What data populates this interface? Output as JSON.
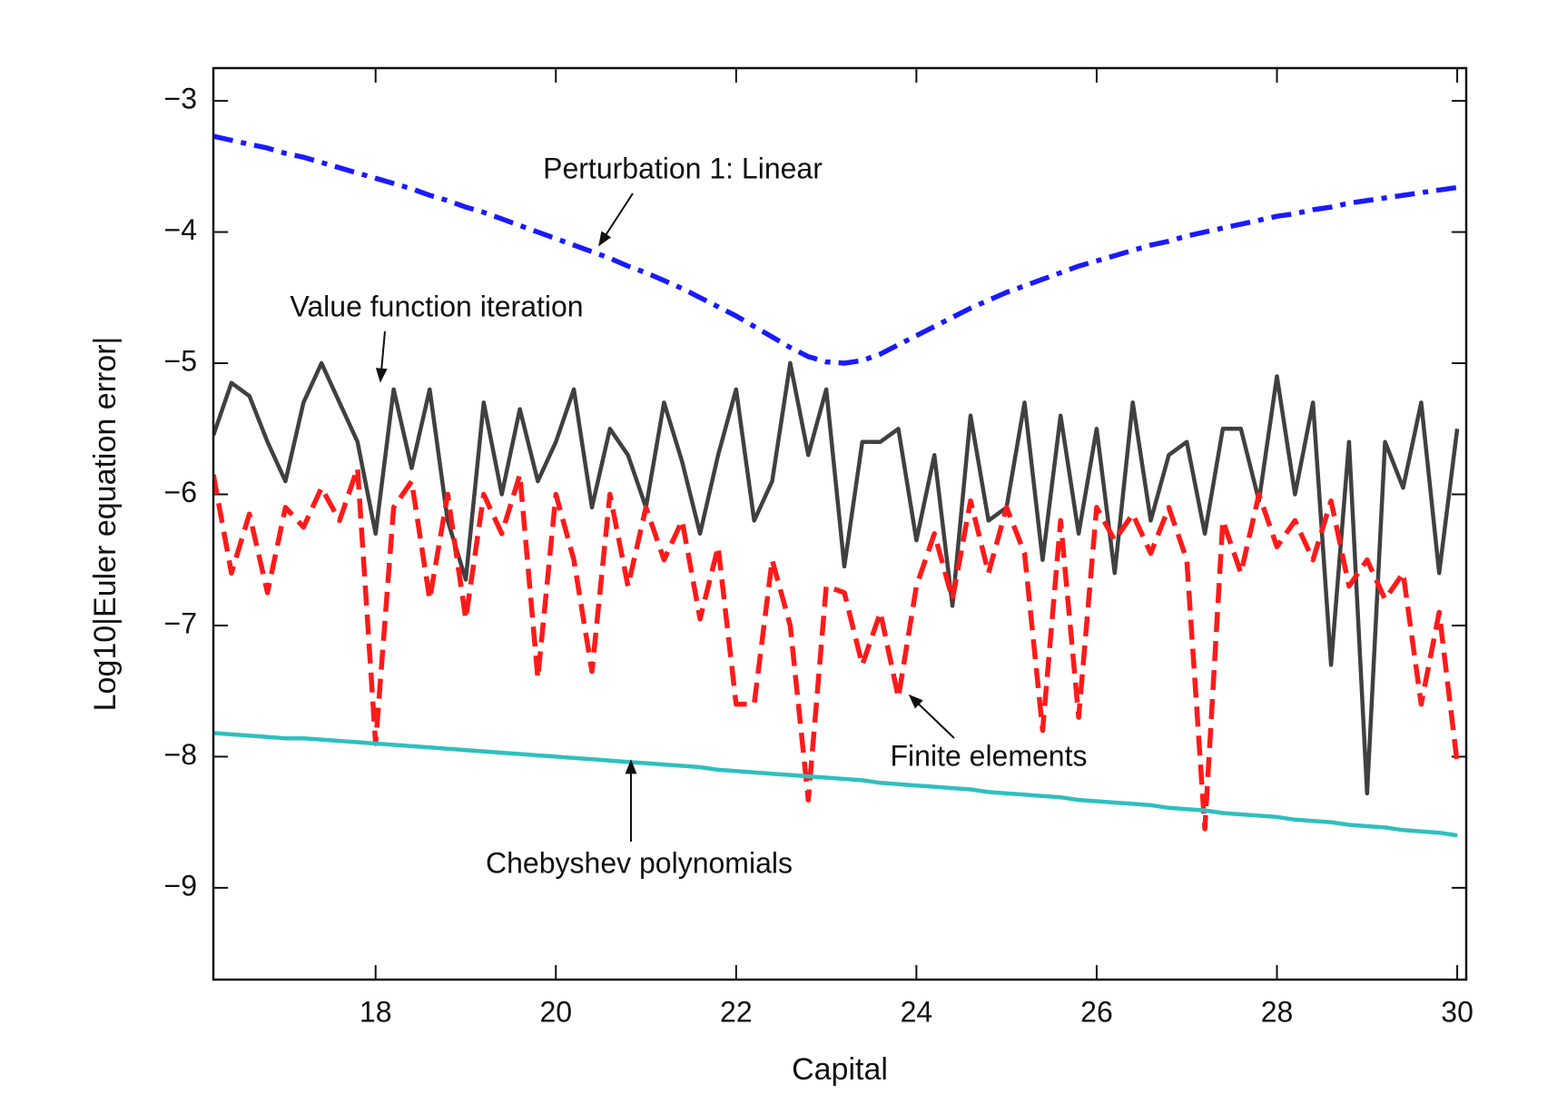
{
  "chart_data": {
    "type": "line",
    "xlabel": "Capital",
    "ylabel": "Log10|Euler equation error|",
    "xlim": [
      16.2,
      30.1
    ],
    "ylim": [
      -9.7,
      -2.75
    ],
    "xticks": [
      18,
      20,
      22,
      24,
      26,
      28,
      30
    ],
    "yticks": [
      {
        "value": -3,
        "label": "−3"
      },
      {
        "value": -4,
        "label": "−4"
      },
      {
        "value": -5,
        "label": "−5"
      },
      {
        "value": -6,
        "label": "−6"
      },
      {
        "value": -7,
        "label": "−7"
      },
      {
        "value": -8,
        "label": "−8"
      },
      {
        "value": -9,
        "label": "−9"
      }
    ],
    "x": [
      16.2,
      16.4,
      16.6,
      16.8,
      17.0,
      17.2,
      17.4,
      17.6,
      17.8,
      18.0,
      18.2,
      18.4,
      18.6,
      18.8,
      19.0,
      19.2,
      19.4,
      19.6,
      19.8,
      20.0,
      20.2,
      20.4,
      20.6,
      20.8,
      21.0,
      21.2,
      21.4,
      21.6,
      21.8,
      22.0,
      22.2,
      22.4,
      22.6,
      22.8,
      23.0,
      23.2,
      23.4,
      23.6,
      23.8,
      24.0,
      24.2,
      24.4,
      24.6,
      24.8,
      25.0,
      25.2,
      25.4,
      25.6,
      25.8,
      26.0,
      26.2,
      26.4,
      26.6,
      26.8,
      27.0,
      27.2,
      27.4,
      27.6,
      27.8,
      28.0,
      28.2,
      28.4,
      28.6,
      28.8,
      29.0,
      29.2,
      29.4,
      29.6,
      29.8,
      30.0
    ],
    "series": [
      {
        "name": "Perturbation 1: Linear",
        "color": "#1a1aff",
        "dash": "dashdot",
        "values": [
          -3.27,
          -3.3,
          -3.33,
          -3.36,
          -3.4,
          -3.43,
          -3.47,
          -3.51,
          -3.55,
          -3.59,
          -3.63,
          -3.67,
          -3.72,
          -3.76,
          -3.81,
          -3.85,
          -3.9,
          -3.95,
          -4.0,
          -4.05,
          -4.1,
          -4.15,
          -4.2,
          -4.26,
          -4.31,
          -4.37,
          -4.43,
          -4.5,
          -4.57,
          -4.64,
          -4.72,
          -4.8,
          -4.88,
          -4.95,
          -4.99,
          -5.0,
          -4.98,
          -4.93,
          -4.86,
          -4.79,
          -4.72,
          -4.65,
          -4.58,
          -4.52,
          -4.46,
          -4.41,
          -4.36,
          -4.31,
          -4.26,
          -4.22,
          -4.18,
          -4.14,
          -4.1,
          -4.07,
          -4.03,
          -4.0,
          -3.97,
          -3.94,
          -3.91,
          -3.88,
          -3.86,
          -3.83,
          -3.81,
          -3.78,
          -3.76,
          -3.74,
          -3.72,
          -3.7,
          -3.68,
          -3.66
        ]
      },
      {
        "name": "Value function iteration",
        "color": "#404040",
        "dash": "solid",
        "values": [
          -5.55,
          -5.15,
          -5.25,
          -5.6,
          -5.9,
          -5.3,
          -5.0,
          -5.3,
          -5.6,
          -6.3,
          -5.2,
          -5.8,
          -5.2,
          -6.2,
          -6.65,
          -5.3,
          -6.0,
          -5.35,
          -5.9,
          -5.6,
          -5.2,
          -6.1,
          -5.5,
          -5.7,
          -6.1,
          -5.3,
          -5.75,
          -6.3,
          -5.7,
          -5.2,
          -6.2,
          -5.9,
          -5.0,
          -5.7,
          -5.2,
          -6.55,
          -5.6,
          -5.6,
          -5.5,
          -6.35,
          -5.7,
          -6.85,
          -5.4,
          -6.2,
          -6.1,
          -5.3,
          -6.5,
          -5.4,
          -6.3,
          -5.5,
          -6.6,
          -5.3,
          -6.2,
          -5.7,
          -5.6,
          -6.3,
          -5.5,
          -5.5,
          -6.05,
          -5.1,
          -6.0,
          -5.3,
          -7.3,
          -5.6,
          -8.28,
          -5.6,
          -5.95,
          -5.3,
          -6.6,
          -5.5
        ]
      },
      {
        "name": "Finite elements",
        "color": "#ff1a1a",
        "dash": "dashed",
        "values": [
          -5.85,
          -6.6,
          -6.15,
          -6.75,
          -6.1,
          -6.25,
          -5.95,
          -6.2,
          -5.8,
          -7.9,
          -6.1,
          -5.9,
          -6.8,
          -6.0,
          -6.95,
          -6.0,
          -6.3,
          -5.85,
          -7.4,
          -6.0,
          -6.5,
          -7.35,
          -6.0,
          -6.7,
          -6.1,
          -6.5,
          -6.2,
          -6.95,
          -6.4,
          -7.6,
          -7.6,
          -6.5,
          -7.0,
          -8.33,
          -6.7,
          -6.75,
          -7.3,
          -6.9,
          -7.55,
          -6.7,
          -6.3,
          -6.8,
          -6.05,
          -6.6,
          -6.1,
          -6.45,
          -7.8,
          -6.2,
          -7.7,
          -6.1,
          -6.35,
          -6.15,
          -6.45,
          -6.1,
          -6.5,
          -8.55,
          -6.2,
          -6.6,
          -6.0,
          -6.4,
          -6.2,
          -6.5,
          -6.05,
          -6.7,
          -6.5,
          -6.8,
          -6.6,
          -7.6,
          -6.9,
          -8.05
        ]
      },
      {
        "name": "Chebyshev polynomials",
        "color": "#2fbfbf",
        "dash": "solid",
        "values": [
          -7.82,
          -7.83,
          -7.84,
          -7.85,
          -7.86,
          -7.86,
          -7.87,
          -7.88,
          -7.89,
          -7.9,
          -7.91,
          -7.92,
          -7.93,
          -7.94,
          -7.95,
          -7.96,
          -7.97,
          -7.98,
          -7.99,
          -8.0,
          -8.01,
          -8.02,
          -8.03,
          -8.04,
          -8.05,
          -8.06,
          -8.07,
          -8.08,
          -8.1,
          -8.11,
          -8.12,
          -8.13,
          -8.14,
          -8.15,
          -8.16,
          -8.17,
          -8.18,
          -8.2,
          -8.21,
          -8.22,
          -8.23,
          -8.24,
          -8.25,
          -8.27,
          -8.28,
          -8.29,
          -8.3,
          -8.31,
          -8.33,
          -8.34,
          -8.35,
          -8.36,
          -8.37,
          -8.39,
          -8.4,
          -8.41,
          -8.43,
          -8.44,
          -8.45,
          -8.46,
          -8.48,
          -8.49,
          -8.5,
          -8.52,
          -8.53,
          -8.54,
          -8.56,
          -8.57,
          -8.58,
          -8.6
        ]
      }
    ]
  }
}
